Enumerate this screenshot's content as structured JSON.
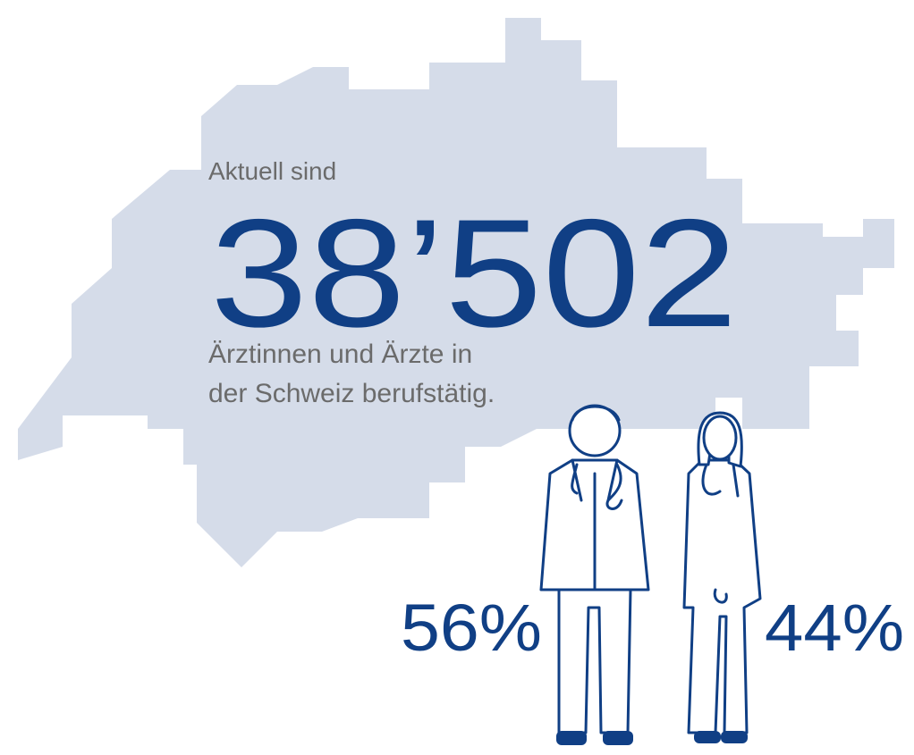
{
  "intro": "Aktuell sind",
  "headline": "38’502",
  "caption": [
    "Ärztinnen und Ärzte in",
    "der Schweiz berufstätig."
  ],
  "shares": {
    "men": "56%",
    "women": "44%"
  }
}
